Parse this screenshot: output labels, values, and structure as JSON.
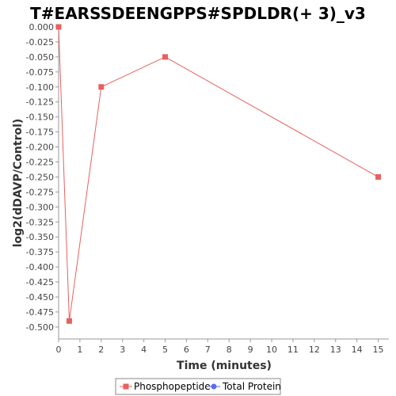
{
  "chart_data": {
    "type": "line",
    "title": "T#EARSSDEENGPPS#SPDLDR(+ 3)_v3",
    "xlabel": "Time (minutes)",
    "ylabel": "log2(dDAVP/Control)",
    "xlim": [
      0,
      15.5
    ],
    "ylim": [
      -0.52,
      0.0
    ],
    "x_ticks": [
      0,
      1,
      2,
      3,
      4,
      5,
      6,
      7,
      8,
      9,
      10,
      11,
      12,
      13,
      14,
      15
    ],
    "y_ticks": [
      0.0,
      -0.025,
      -0.05,
      -0.075,
      -0.1,
      -0.125,
      -0.15,
      -0.175,
      -0.2,
      -0.225,
      -0.25,
      -0.275,
      -0.3,
      -0.325,
      -0.35,
      -0.375,
      -0.4,
      -0.425,
      -0.45,
      -0.475,
      -0.5
    ],
    "y_tick_labels": [
      "0.000",
      "-0.025",
      "-0.050",
      "-0.075",
      "-0.100",
      "-0.125",
      "-0.150",
      "-0.175",
      "-0.200",
      "-0.225",
      "-0.250",
      "-0.275",
      "-0.300",
      "-0.325",
      "-0.350",
      "-0.375",
      "-0.400",
      "-0.425",
      "-0.450",
      "-0.475",
      "-0.500"
    ],
    "grid": false,
    "legend_position": "bottom-center",
    "series": [
      {
        "name": "Phosphopeptide",
        "color": "#e8605f",
        "marker": "square",
        "x": [
          0,
          0.5,
          2,
          5,
          15
        ],
        "y": [
          0.0,
          -0.49,
          -0.1,
          -0.05,
          -0.25
        ]
      },
      {
        "name": "Total Protein",
        "color": "#5b6cf0",
        "marker": "circle",
        "x": [],
        "y": []
      }
    ]
  }
}
